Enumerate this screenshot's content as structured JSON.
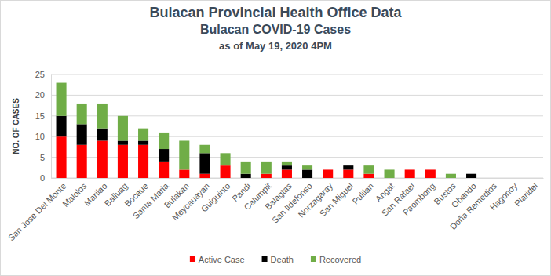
{
  "chart_data": {
    "type": "bar",
    "title": [
      "Bulacan Provincial Health Office Data",
      "Bulacan COVID-19 Cases"
    ],
    "subtitle": "as of May 19, 2020 4PM",
    "y_label": "NO. OF CASES",
    "categories": [
      "San Jose Del Monte",
      "Malolos",
      "Marilao",
      "Baliuag",
      "Bocaue",
      "Santa Maria",
      "Bulakan",
      "Meycauayan",
      "Guiguinto",
      "Pandi",
      "Calumpit",
      "Balagtas",
      "San Ildefonso",
      "Norzagaray",
      "San Miguel",
      "Pulilan",
      "Angat",
      "San Rafael",
      "Paombong",
      "Bustos",
      "Obando",
      "Doña Remedios",
      "Hagonoy",
      "Plaridel"
    ],
    "series": [
      {
        "name": "Active Case",
        "color": "#ff0000",
        "values": [
          10,
          8,
          9,
          8,
          8,
          4,
          2,
          1,
          3,
          0,
          1,
          2,
          0,
          2,
          2,
          1,
          0,
          2,
          2,
          0,
          0,
          0,
          0,
          0
        ]
      },
      {
        "name": "Death",
        "color": "#000000",
        "values": [
          5,
          5,
          3,
          1,
          1,
          3,
          0,
          5,
          0,
          1,
          0,
          1,
          2,
          0,
          1,
          0,
          0,
          0,
          0,
          0,
          1,
          0,
          0,
          0
        ]
      },
      {
        "name": "Recovered",
        "color": "#70ad47",
        "values": [
          8,
          5,
          6,
          6,
          3,
          4,
          7,
          2,
          3,
          3,
          3,
          1,
          1,
          0,
          0,
          2,
          2,
          0,
          0,
          1,
          0,
          0,
          0,
          0
        ]
      }
    ],
    "stacked": true,
    "ylim": [
      0,
      25
    ],
    "yticks": [
      0,
      5,
      10,
      15,
      20,
      25
    ],
    "grid": true,
    "legend": "bottom"
  }
}
